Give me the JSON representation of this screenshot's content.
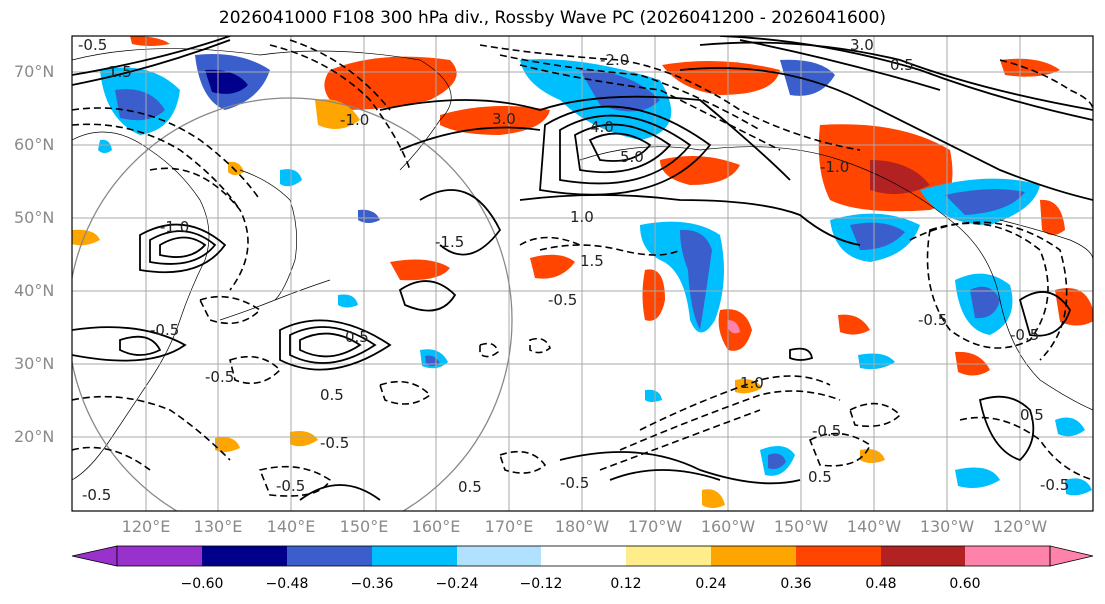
{
  "title": "2026041000 F108 300 hPa div., Rossby Wave PC (2026041200 - 2026041600)",
  "lat_labels": [
    "70°N",
    "60°N",
    "50°N",
    "40°N",
    "30°N",
    "20°N"
  ],
  "lon_labels": [
    "120°E",
    "130°E",
    "140°E",
    "150°E",
    "160°E",
    "170°E",
    "180°W",
    "170°W",
    "160°W",
    "150°W",
    "140°W",
    "130°W",
    "120°W"
  ],
  "colorbar": {
    "colors": [
      "#9932cc",
      "#00008b",
      "#3a5fcd",
      "#00bfff",
      "#b0e2ff",
      "#ffffff",
      "#ffec8b",
      "#ffa500",
      "#ff4500",
      "#b22222",
      "#ff82ab"
    ],
    "tick_labels": [
      "−0.60",
      "−0.48",
      "−0.36",
      "−0.24",
      "−0.12",
      "0.12",
      "0.24",
      "0.36",
      "0.48",
      "0.60"
    ]
  },
  "contour_labels": [
    "-0.5",
    "1.5",
    "3.0",
    "4.0",
    "5.0",
    "-1.0",
    "1.0",
    "-0.5",
    "0.5",
    "-0.5",
    "-1.5",
    "1.5",
    "-0.5",
    "0.5",
    "-0.5",
    "-1.0",
    "1.0",
    "-0.5",
    "-0.5",
    "0.5",
    "-0.5",
    "0.5",
    "-0.5",
    "-0.5",
    "3.0",
    "-2.0",
    "0.5",
    "-1.0",
    "-0.5",
    "0.5",
    "-0.5"
  ]
}
